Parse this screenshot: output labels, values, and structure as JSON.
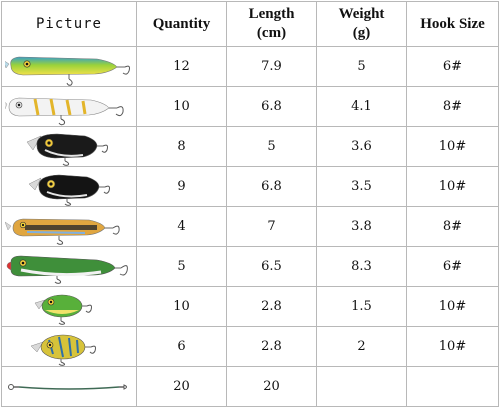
{
  "headers": {
    "picture": "Picture",
    "quantity": "Quantity",
    "length_line1": "Length",
    "length_line2": "(cm)",
    "weight_line1": "Weight",
    "weight_line2": "(g)",
    "hook_size": "Hook Size"
  },
  "rows": [
    {
      "lure": "minnow-lure-yellow-icon",
      "quantity": "12",
      "length": "7.9",
      "weight": "5",
      "hook": "6#"
    },
    {
      "lure": "minnow-lure-white-icon",
      "quantity": "10",
      "length": "6.8",
      "weight": "4.1",
      "hook": "8#"
    },
    {
      "lure": "crankbait-lure-black-icon",
      "quantity": "8",
      "length": "5",
      "weight": "3.6",
      "hook": "10#"
    },
    {
      "lure": "crankbait-lure-black-icon",
      "quantity": "9",
      "length": "6.8",
      "weight": "3.5",
      "hook": "10#"
    },
    {
      "lure": "minnow-lure-orange-icon",
      "quantity": "4",
      "length": "7",
      "weight": "3.8",
      "hook": "8#"
    },
    {
      "lure": "popper-lure-green-icon",
      "quantity": "5",
      "length": "6.5",
      "weight": "8.3",
      "hook": "6#"
    },
    {
      "lure": "crankbait-lure-green-icon",
      "quantity": "10",
      "length": "2.8",
      "weight": "1.5",
      "hook": "10#"
    },
    {
      "lure": "crankbait-lure-yellow-icon",
      "quantity": "6",
      "length": "2.8",
      "weight": "2",
      "hook": "10#"
    },
    {
      "lure": "wire-leader-icon",
      "quantity": "20",
      "length": "20",
      "weight": "",
      "hook": ""
    }
  ]
}
